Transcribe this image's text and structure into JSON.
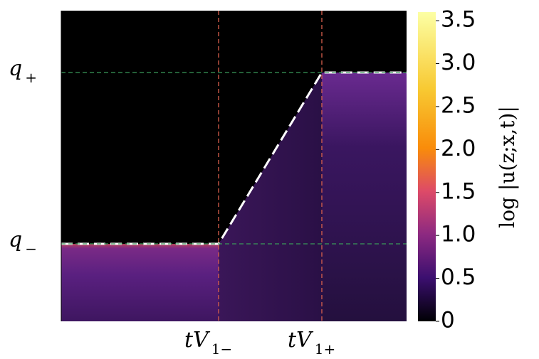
{
  "chart_data": {
    "type": "heatmap",
    "xtick_labels": [
      {
        "symbol": "tV",
        "subscript": "1−"
      },
      {
        "symbol": "tV",
        "subscript": "1+"
      }
    ],
    "ytick_labels": [
      {
        "symbol": "q",
        "subscript": "+"
      },
      {
        "symbol": "q",
        "subscript": "−"
      }
    ],
    "colorbar": {
      "label": "log |u(z;x,t)|",
      "lim": [
        0,
        3.6
      ],
      "ticks": [
        0,
        0.5,
        {
          "value": 1,
          "label": "1.0"
        },
        1.5,
        {
          "value": 2,
          "label": "2.0"
        },
        2.5,
        {
          "value": 3,
          "label": "3.0"
        },
        3.5
      ]
    }
  }
}
